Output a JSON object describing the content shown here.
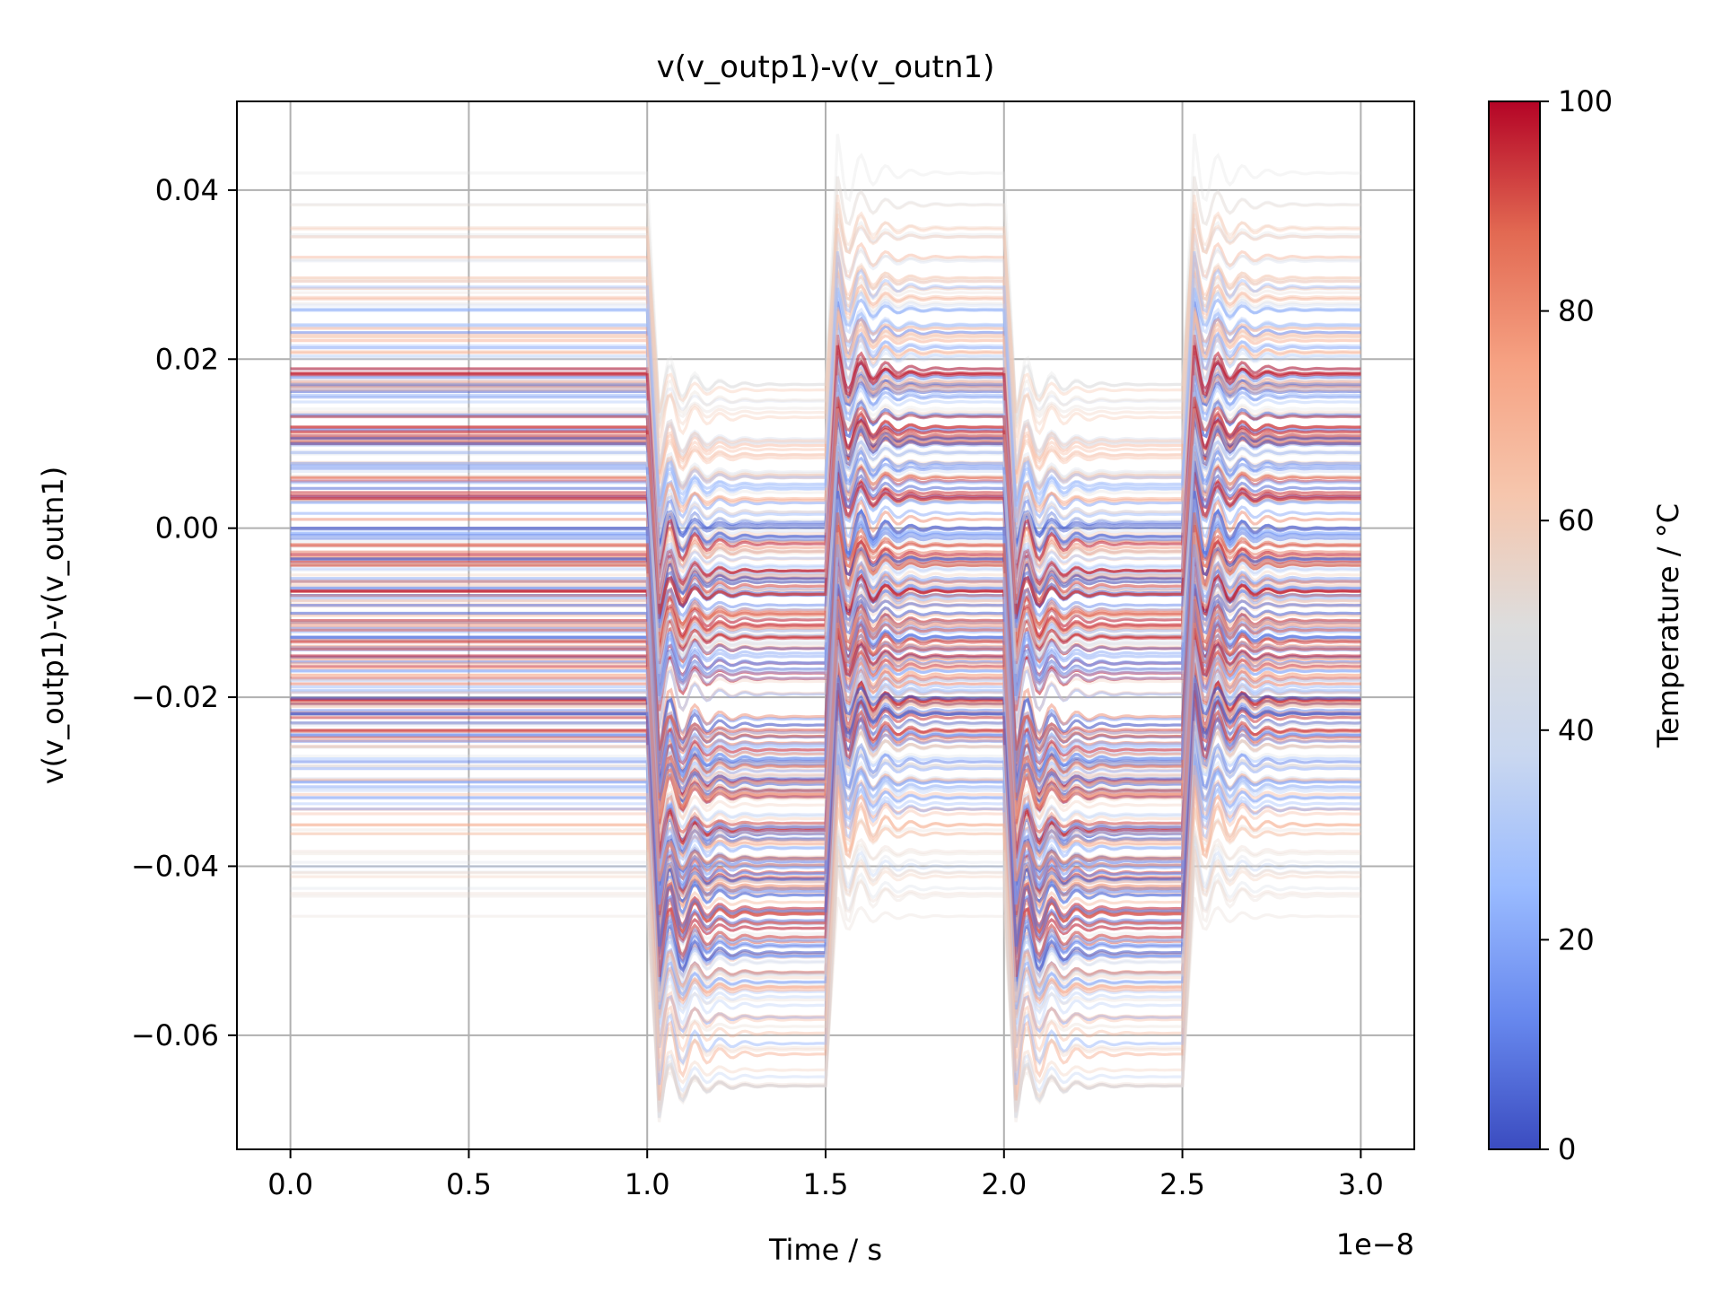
{
  "chart_data": {
    "type": "line",
    "title": "v(v_outp1)-v(v_outn1)",
    "xlabel": "Time / s",
    "ylabel": "v(v_outp1)-v(v_outn1)",
    "x_offset_label": "1e−8",
    "xlim": [
      -1.5e-09,
      3.15e-08
    ],
    "ylim": [
      -0.0735,
      0.0505
    ],
    "x_ticks": [
      0,
      5e-09,
      1e-08,
      1.5e-08,
      2e-08,
      2.5e-08,
      3e-08
    ],
    "x_tick_labels": [
      "0.0",
      "0.5",
      "1.0",
      "1.5",
      "2.0",
      "2.5",
      "3.0"
    ],
    "y_ticks": [
      -0.06,
      -0.04,
      -0.02,
      0.0,
      0.02,
      0.04
    ],
    "y_tick_labels": [
      "−0.06",
      "−0.04",
      "−0.02",
      "0.00",
      "0.02",
      "0.04"
    ],
    "grid": true,
    "colormap": "coolwarm",
    "colormap_stops": [
      "#3b4cc0",
      "#6788ee",
      "#9abbff",
      "#c9d7f0",
      "#dddddd",
      "#f6c6ad",
      "#f6a283",
      "#e26952",
      "#b40426"
    ],
    "colorbar": {
      "label": "Temperature / °C",
      "range": [
        0,
        100
      ],
      "ticks": [
        0,
        20,
        40,
        60,
        80,
        100
      ],
      "tick_labels": [
        "0",
        "20",
        "40",
        "60",
        "80",
        "100"
      ]
    },
    "waveform": {
      "description_times": [
        0,
        1e-08,
        1.05e-08,
        1.5e-08,
        1.55e-08,
        2e-08,
        2.05e-08,
        2.5e-08,
        2.55e-08,
        3e-08
      ],
      "high_level_range": [
        -0.048,
        0.043
      ],
      "low_level_range": [
        -0.066,
        0.017
      ],
      "series_count": 300,
      "temperature_range": [
        0,
        100
      ]
    }
  }
}
